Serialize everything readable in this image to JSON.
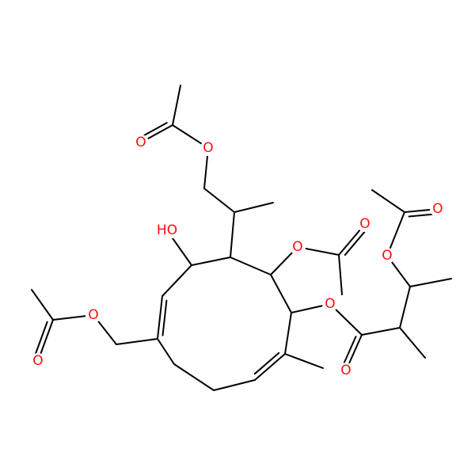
{
  "atom_labels": [
    "O",
    "O",
    "HO",
    "O",
    "O",
    "O",
    "O",
    "O",
    "O",
    "O",
    "O"
  ]
}
